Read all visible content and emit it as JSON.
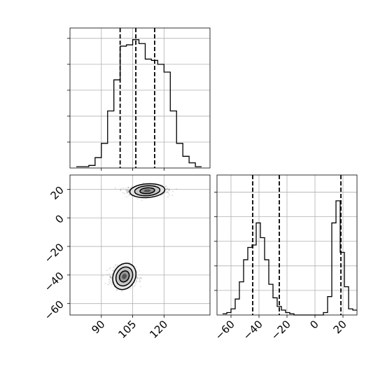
{
  "chart_data": [
    {
      "type": "histogram",
      "panel": "top-left",
      "xlim": [
        75,
        142
      ],
      "ylim": [
        0,
        0.054
      ],
      "bin_edges": [
        78,
        81,
        84,
        87,
        90,
        93,
        96,
        99,
        102,
        105,
        108,
        111,
        114,
        117,
        120,
        123,
        126,
        129,
        132,
        135,
        138
      ],
      "counts": [
        0.0005,
        0.0005,
        0.001,
        0.004,
        0.0095,
        0.022,
        0.034,
        0.047,
        0.0475,
        0.0495,
        0.048,
        0.042,
        0.0415,
        0.04,
        0.037,
        0.022,
        0.0095,
        0.0045,
        0.002,
        0.0005
      ],
      "quantiles": [
        99,
        106.5,
        115.5
      ],
      "grid": true
    },
    {
      "type": "scatter",
      "panel": "bottom-left",
      "xlim": [
        75,
        142
      ],
      "ylim": [
        -68,
        30
      ],
      "x_ticks": [
        90,
        105,
        120
      ],
      "y_ticks": [
        20,
        0,
        -20,
        -40,
        -60
      ],
      "clusters": [
        {
          "center": [
            112,
            19
          ],
          "spread": [
            8,
            3
          ],
          "n": 900
        },
        {
          "center": [
            101,
            -41
          ],
          "spread": [
            5,
            6
          ],
          "n": 900
        }
      ],
      "contour_levels": [
        "inner",
        "middle",
        "outer"
      ],
      "grid": true
    },
    {
      "type": "histogram",
      "panel": "bottom-right",
      "xlim": [
        -70,
        30
      ],
      "ylim": [
        0,
        0.057
      ],
      "x_ticks": [
        -60,
        -40,
        -20,
        0,
        20
      ],
      "bin_edges": [
        -66,
        -63,
        -60,
        -57,
        -54,
        -51,
        -48,
        -45,
        -42,
        -39,
        -36,
        -33,
        -30,
        -27,
        -24,
        -21,
        -18,
        -15,
        -12,
        -9,
        -6,
        -3,
        0,
        3,
        6,
        9,
        12,
        15,
        18,
        21,
        24,
        27,
        30
      ],
      "counts": [
        0.0005,
        0.001,
        0.0025,
        0.0065,
        0.0135,
        0.0225,
        0.0275,
        0.0285,
        0.0375,
        0.0315,
        0.0225,
        0.0125,
        0.007,
        0.0035,
        0.002,
        0.001,
        0.0005,
        0,
        0,
        0,
        0,
        0,
        0,
        0,
        0.001,
        0.0075,
        0.0375,
        0.0465,
        0.0255,
        0.0115,
        0.0025,
        0.002
      ],
      "quantiles": [
        -44.5,
        -25.5,
        18.5
      ],
      "grid": true
    }
  ]
}
